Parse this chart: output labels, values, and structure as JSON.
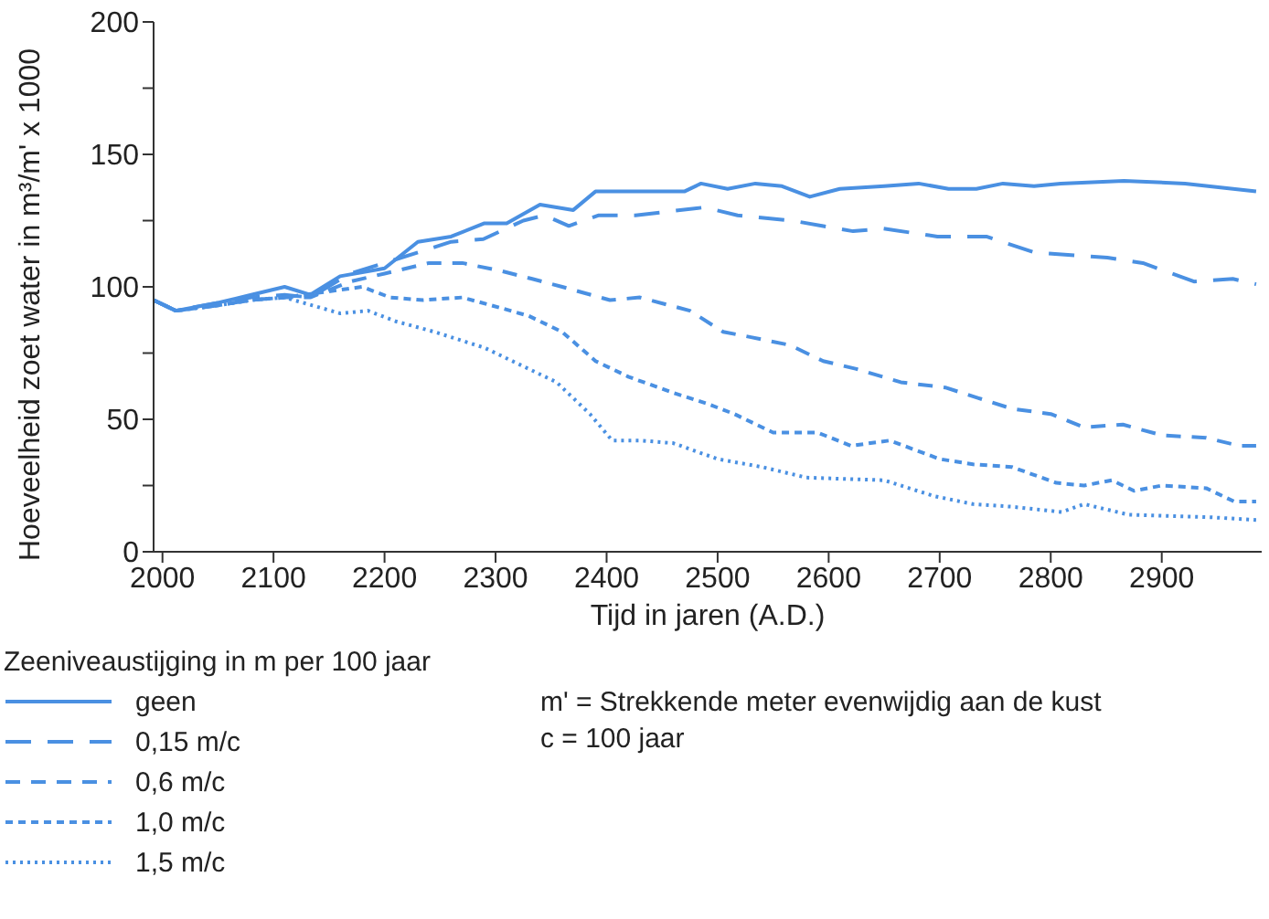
{
  "chart_data": {
    "type": "line",
    "xlabel": "Tijd in jaren (A.D.)",
    "ylabel": "Hoeveelheid zoet water in m³/m' x 1000",
    "legend_title": "Zeeniveaustijging in m per 100 jaar",
    "legend": "bottom left",
    "grid": false,
    "marker": "none",
    "xlim": [
      1992,
      2990
    ],
    "xticks": [
      2000,
      2100,
      2200,
      2300,
      2400,
      2500,
      2600,
      2700,
      2800,
      2900
    ],
    "ylim": [
      0,
      200
    ],
    "yticks": [
      0,
      {
        "value": 25,
        "label": null
      },
      50,
      {
        "value": 75,
        "label": null
      },
      100,
      {
        "value": 125,
        "label": null
      },
      150,
      {
        "value": 175,
        "label": null
      },
      200
    ],
    "annotations": [
      "m' = Strekkende meter evenwijdig aan de kust",
      "c = 100 jaar"
    ],
    "series": [
      {
        "name": "geen",
        "color": "#4a90e2",
        "line_style": "solid",
        "x": [
          1992,
          2012,
          2050,
          2080,
          2110,
          2133,
          2160,
          2200,
          2230,
          2260,
          2290,
          2310,
          2340,
          2370,
          2390,
          2430,
          2470,
          2485,
          2509,
          2534,
          2558,
          2583,
          2610,
          2650,
          2681,
          2708,
          2733,
          2757,
          2785,
          2809,
          2866,
          2921,
          2985
        ],
        "values": [
          95,
          91,
          94,
          97,
          100,
          97,
          104,
          107,
          117,
          119,
          124,
          124,
          131,
          129,
          136,
          136,
          136,
          139,
          137,
          139,
          138,
          134,
          137,
          138,
          139,
          137,
          137,
          139,
          138,
          139,
          140,
          139,
          136
        ]
      },
      {
        "name": "0,15 m/c",
        "color": "#4a90e2",
        "line_style": "dashed",
        "x": [
          1992,
          2012,
          2050,
          2080,
          2110,
          2133,
          2169,
          2200,
          2230,
          2260,
          2289,
          2325,
          2344,
          2366,
          2393,
          2426,
          2488,
          2518,
          2567,
          2594,
          2622,
          2649,
          2698,
          2742,
          2785,
          2851,
          2883,
          2929,
          2964,
          2985
        ],
        "values": [
          95,
          91,
          94,
          96,
          97,
          96,
          105,
          109,
          113,
          117,
          118,
          125,
          127,
          123,
          127,
          127,
          130,
          127,
          125,
          123,
          121,
          122,
          119,
          119,
          113,
          111,
          109,
          102,
          103,
          101
        ]
      },
      {
        "name": "0,6 m/c",
        "color": "#4a90e2",
        "line_style": "dashed",
        "x": [
          1992,
          2012,
          2050,
          2080,
          2110,
          2133,
          2169,
          2200,
          2240,
          2270,
          2305,
          2333,
          2360,
          2403,
          2430,
          2475,
          2505,
          2530,
          2565,
          2595,
          2625,
          2665,
          2705,
          2735,
          2765,
          2800,
          2830,
          2865,
          2900,
          2940,
          2970,
          2985
        ],
        "values": [
          95,
          91,
          93,
          95,
          96,
          96,
          102,
          105,
          109,
          109,
          106,
          103,
          100,
          95,
          96,
          91,
          83,
          81,
          78,
          72,
          69,
          64,
          62,
          58,
          54,
          52,
          47,
          48,
          44,
          43,
          40,
          40
        ]
      },
      {
        "name": "1,0 m/c",
        "color": "#4a90e2",
        "line_style": "dashed",
        "x": [
          1992,
          2012,
          2050,
          2080,
          2110,
          2145,
          2180,
          2205,
          2235,
          2270,
          2305,
          2330,
          2360,
          2390,
          2420,
          2460,
          2490,
          2515,
          2550,
          2590,
          2620,
          2655,
          2700,
          2730,
          2765,
          2805,
          2830,
          2855,
          2875,
          2900,
          2940,
          2965,
          2985
        ],
        "values": [
          95,
          91,
          93,
          95,
          96,
          98,
          100,
          96,
          95,
          96,
          92,
          89,
          83,
          72,
          66,
          60,
          56,
          52,
          45,
          45,
          40,
          42,
          35,
          33,
          32,
          26,
          25,
          27,
          23,
          25,
          24,
          19,
          19
        ]
      },
      {
        "name": "1,5 m/c",
        "color": "#4a90e2",
        "line_style": "dotted",
        "x": [
          1992,
          2012,
          2050,
          2080,
          2110,
          2135,
          2160,
          2185,
          2210,
          2245,
          2290,
          2325,
          2355,
          2385,
          2405,
          2430,
          2460,
          2500,
          2540,
          2580,
          2650,
          2695,
          2730,
          2765,
          2810,
          2830,
          2870,
          2945,
          2985
        ],
        "values": [
          95,
          91,
          93,
          95,
          96,
          93,
          90,
          91,
          87,
          83,
          77,
          70,
          64,
          52,
          42,
          42,
          41,
          35,
          32,
          28,
          27,
          21,
          18,
          17,
          15,
          18,
          14,
          13,
          12
        ]
      }
    ]
  }
}
